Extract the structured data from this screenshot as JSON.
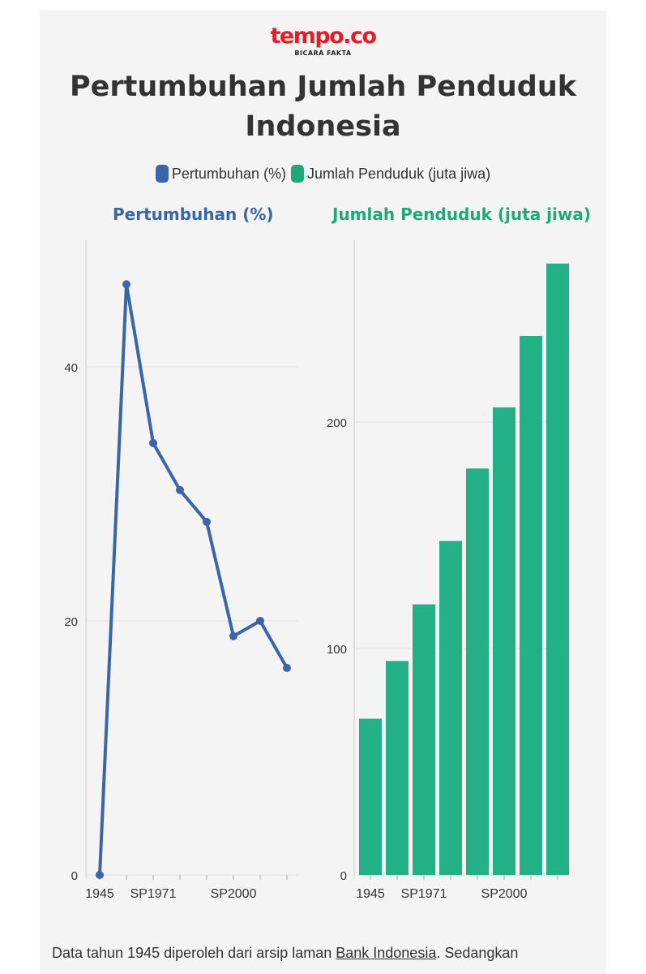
{
  "brand": {
    "name": "tempo.co",
    "tagline": "BICARA FAKTA"
  },
  "title": "Pertumbuhan Jumlah Penduduk Indonesia",
  "legend": [
    {
      "label": "Pertumbuhan (%)",
      "color": "#3a65a8"
    },
    {
      "label": "Jumlah Penduduk (juta jiwa)",
      "color": "#1fa87a"
    }
  ],
  "chart_data": [
    {
      "type": "line",
      "title": "Pertumbuhan (%)",
      "color": "#3a65a8",
      "x_tick_labels": [
        "1945",
        "SP1971",
        "SP2000"
      ],
      "y_ticks": [
        0,
        20,
        40
      ],
      "ylim": [
        0,
        50
      ],
      "values": [
        0,
        46.5,
        34,
        30.3,
        27.8,
        18.8,
        20,
        16.3
      ],
      "xlabel": "",
      "ylabel": ""
    },
    {
      "type": "bar",
      "title": "Jumlah Penduduk (juta jiwa)",
      "color": "#24b085",
      "x_tick_labels": [
        "1945",
        "SP1971",
        "SP2000"
      ],
      "y_ticks": [
        0,
        100,
        200
      ],
      "ylim": [
        0,
        290
      ],
      "values": [
        69,
        94.5,
        119.5,
        147.5,
        179.5,
        206.5,
        238,
        270
      ],
      "xlabel": "",
      "ylabel": ""
    }
  ],
  "footer": {
    "prefix": "Data tahun 1945 diperoleh dari arsip laman ",
    "link": "Bank Indonesia",
    "suffix": ". Sedangkan"
  }
}
